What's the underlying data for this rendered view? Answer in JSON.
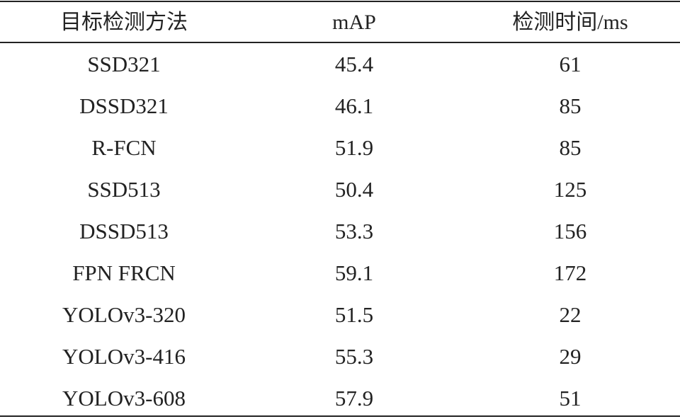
{
  "table": {
    "header": [
      "目标检测方法",
      "mAP",
      "检测时间/ms"
    ],
    "rows": [
      [
        "SSD321",
        "45.4",
        "61"
      ],
      [
        "DSSD321",
        "46.1",
        "85"
      ],
      [
        "R-FCN",
        "51.9",
        "85"
      ],
      [
        "SSD513",
        "50.4",
        "125"
      ],
      [
        "DSSD513",
        "53.3",
        "156"
      ],
      [
        "FPN FRCN",
        "59.1",
        "172"
      ],
      [
        "YOLOv3-320",
        "51.5",
        "22"
      ],
      [
        "YOLOv3-416",
        "55.3",
        "29"
      ],
      [
        "YOLOv3-608",
        "57.9",
        "51"
      ]
    ]
  }
}
